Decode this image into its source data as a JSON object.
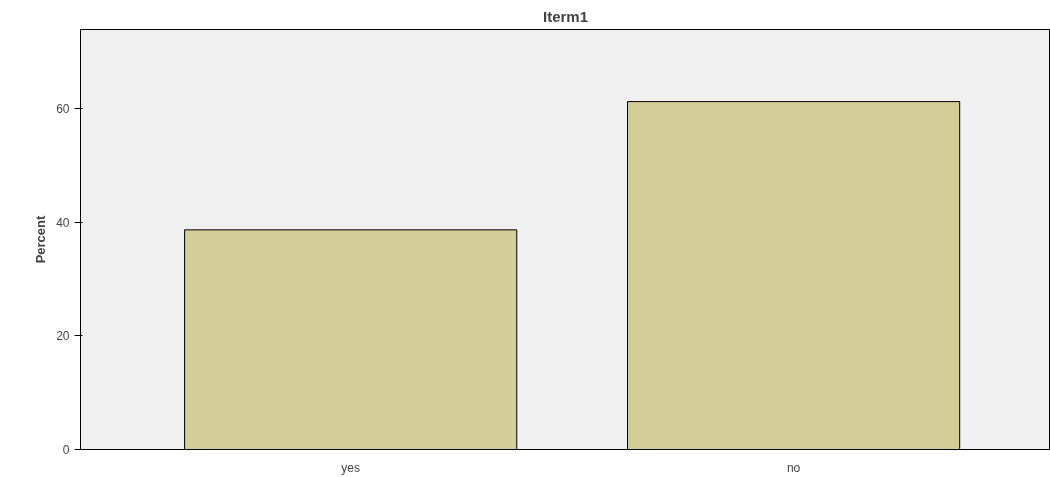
{
  "chart_data": {
    "type": "bar",
    "title": "Iterm1",
    "ylabel": "Percent",
    "categories": [
      "yes",
      "no"
    ],
    "values": [
      38.7,
      61.3
    ],
    "color": "#d3ce97",
    "ylim": [
      0,
      74
    ],
    "yticks": [
      0,
      20,
      40,
      60
    ],
    "grid": false
  }
}
